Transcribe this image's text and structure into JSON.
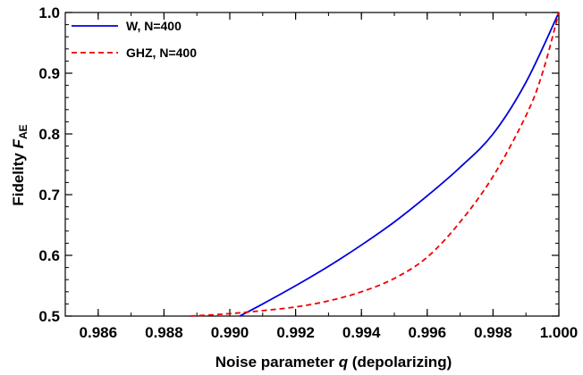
{
  "chart_data": {
    "type": "line",
    "xlabel": "Noise parameter q (depolarizing)",
    "xlabel_parts": {
      "prefix": "Noise parameter ",
      "var": "q",
      "suffix": " (depolarizing)"
    },
    "ylabel_parts": {
      "prefix": "Fidelity ",
      "var": "F",
      "sub": "AE"
    },
    "xlim": [
      0.985,
      1.0
    ],
    "ylim": [
      0.5,
      1.0
    ],
    "xticks": [
      "0.986",
      "0.988",
      "0.990",
      "0.992",
      "0.994",
      "0.996",
      "0.998",
      "1.000"
    ],
    "yticks": [
      "0.5",
      "0.6",
      "0.7",
      "0.8",
      "0.9",
      "1.0"
    ],
    "legend_position": "top-left",
    "grid": false,
    "series": [
      {
        "name": "W, N=400",
        "color": "#0000dd",
        "dash": "solid",
        "x": [
          0.9903,
          0.991,
          0.992,
          0.993,
          0.994,
          0.995,
          0.996,
          0.997,
          0.998,
          0.999,
          1.0
        ],
        "y": [
          0.5,
          0.52,
          0.55,
          0.582,
          0.617,
          0.655,
          0.698,
          0.745,
          0.8,
          0.885,
          1.0
        ]
      },
      {
        "name": "GHZ, N=400",
        "color": "#ee0000",
        "dash": "dashed",
        "x": [
          0.9888,
          0.99,
          0.991,
          0.992,
          0.993,
          0.994,
          0.995,
          0.996,
          0.997,
          0.998,
          0.999,
          0.9995,
          1.0
        ],
        "y": [
          0.5,
          0.504,
          0.509,
          0.515,
          0.525,
          0.54,
          0.562,
          0.597,
          0.655,
          0.73,
          0.83,
          0.9,
          1.0
        ]
      }
    ]
  }
}
